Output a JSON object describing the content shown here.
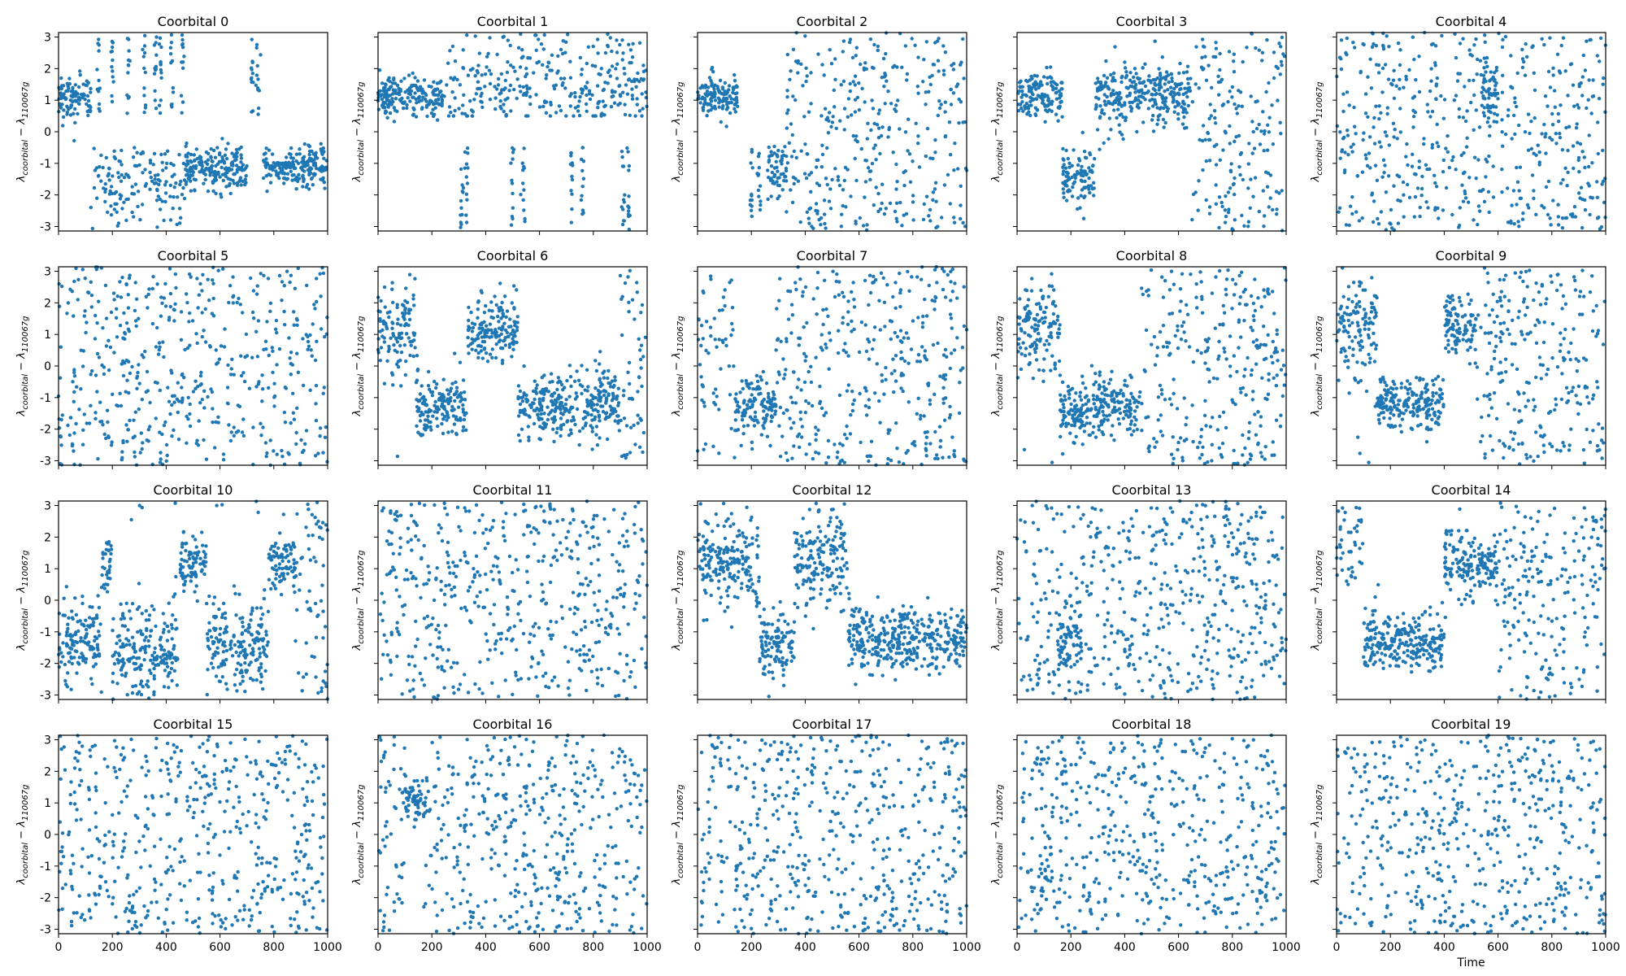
{
  "figure": {
    "color": "#1f77b4",
    "x_axis_label": "Time"
  },
  "chart_data": {
    "type": "scatter",
    "layout": {
      "rows": 4,
      "cols": 5,
      "sharex": true,
      "sharey": true
    },
    "xlim": [
      0,
      1000
    ],
    "ylim": [
      -3.1416,
      3.1416
    ],
    "xticks": [
      0,
      200,
      400,
      600,
      800,
      1000
    ],
    "yticks": [
      -3,
      -2,
      -1,
      0,
      1,
      2,
      3
    ],
    "xlabel_panel_index": 19,
    "ylabel_text": "λcoorbital − λ110067g",
    "ylabel_main": "λ",
    "ylabel_sub1": "coorbital",
    "ylabel_sub2": "110067g",
    "ylabel_minus": " − ",
    "points_per_series": 520,
    "series": [
      {
        "name": "Coorbital 0",
        "regimes": [
          {
            "t": [
              0,
              120
            ],
            "mode": "lib",
            "c": 1.1,
            "s": 0.35
          },
          {
            "t": [
              120,
              470
            ],
            "mode": "band",
            "lo": -3.14,
            "hi": -0.5,
            "cl": -1.5,
            "sl": 0.45
          },
          {
            "t": [
              120,
              470
            ],
            "mode": "stripe",
            "xs": [
              150,
              200,
              260,
              320,
              360,
              380,
              420,
              460
            ],
            "lo": 0.5,
            "hi": 3.1
          },
          {
            "t": [
              470,
              700
            ],
            "mode": "lib",
            "c": -1.2,
            "s": 0.35
          },
          {
            "t": [
              700,
              760
            ],
            "mode": "stripe",
            "xs": [
              720,
              740
            ],
            "lo": 0.5,
            "hi": 3.1
          },
          {
            "t": [
              760,
              1000
            ],
            "mode": "lib",
            "c": -1.1,
            "s": 0.3
          }
        ]
      },
      {
        "name": "Coorbital 1",
        "regimes": [
          {
            "t": [
              0,
              240
            ],
            "mode": "lib",
            "c": 1.1,
            "s": 0.3
          },
          {
            "t": [
              240,
              1000
            ],
            "mode": "band",
            "lo": 0.5,
            "hi": 3.1,
            "cl": 1.2,
            "sl": 0.5
          },
          {
            "t": [
              240,
              1000
            ],
            "mode": "stripe",
            "xs": [
              310,
              330,
              500,
              540,
              720,
              760,
              910,
              930
            ],
            "lo": -3.1,
            "hi": -0.5
          }
        ]
      },
      {
        "name": "Coorbital 2",
        "regimes": [
          {
            "t": [
              0,
              150
            ],
            "mode": "lib",
            "c": 1.1,
            "s": 0.3
          },
          {
            "t": [
              150,
              260
            ],
            "mode": "stripe",
            "xs": [
              200,
              230
            ],
            "lo": -3.14,
            "hi": -0.5
          },
          {
            "t": [
              260,
              330
            ],
            "mode": "lib",
            "c": -1.3,
            "s": 0.45
          },
          {
            "t": [
              330,
              1000
            ],
            "mode": "rand"
          }
        ]
      },
      {
        "name": "Coorbital 3",
        "regimes": [
          {
            "t": [
              0,
              170
            ],
            "mode": "lib",
            "c": 1.1,
            "s": 0.35
          },
          {
            "t": [
              170,
              290
            ],
            "mode": "lib",
            "c": -1.4,
            "s": 0.45
          },
          {
            "t": [
              290,
              640
            ],
            "mode": "lib",
            "c": 1.2,
            "s": 0.55
          },
          {
            "t": [
              640,
              1000
            ],
            "mode": "rand"
          }
        ]
      },
      {
        "name": "Coorbital 4",
        "regimes": [
          {
            "t": [
              0,
              1000
            ],
            "mode": "rand"
          },
          {
            "t": [
              540,
              600
            ],
            "mode": "lib",
            "c": 1.3,
            "s": 0.5
          }
        ]
      },
      {
        "name": "Coorbital 5",
        "regimes": [
          {
            "t": [
              0,
              1000
            ],
            "mode": "rand"
          }
        ]
      },
      {
        "name": "Coorbital 6",
        "regimes": [
          {
            "t": [
              0,
              140
            ],
            "mode": "lib",
            "c": 1.2,
            "s": 0.8
          },
          {
            "t": [
              140,
              330
            ],
            "mode": "lib",
            "c": -1.3,
            "s": 0.5
          },
          {
            "t": [
              330,
              520
            ],
            "mode": "lib",
            "c": 1.2,
            "s": 0.5
          },
          {
            "t": [
              520,
              900
            ],
            "mode": "lib",
            "c": -1.2,
            "s": 0.5
          },
          {
            "t": [
              900,
              1000
            ],
            "mode": "rand"
          }
        ]
      },
      {
        "name": "Coorbital 7",
        "regimes": [
          {
            "t": [
              0,
              140
            ],
            "mode": "band",
            "lo": -3.1,
            "hi": 3.1,
            "cl": 1.2,
            "sl": 0.9
          },
          {
            "t": [
              140,
              290
            ],
            "mode": "lib",
            "c": -1.3,
            "s": 0.5
          },
          {
            "t": [
              290,
              1000
            ],
            "mode": "rand"
          }
        ]
      },
      {
        "name": "Coorbital 8",
        "regimes": [
          {
            "t": [
              0,
              160
            ],
            "mode": "lib",
            "c": 1.2,
            "s": 0.8
          },
          {
            "t": [
              160,
              460
            ],
            "mode": "lib",
            "c": -1.3,
            "s": 0.5
          },
          {
            "t": [
              460,
              1000
            ],
            "mode": "rand"
          }
        ]
      },
      {
        "name": "Coorbital 9",
        "regimes": [
          {
            "t": [
              0,
              150
            ],
            "mode": "lib",
            "c": 1.2,
            "s": 0.8
          },
          {
            "t": [
              150,
              400
            ],
            "mode": "lib",
            "c": -1.2,
            "s": 0.4
          },
          {
            "t": [
              400,
              520
            ],
            "mode": "lib",
            "c": 1.3,
            "s": 0.5
          },
          {
            "t": [
              520,
              1000
            ],
            "mode": "rand"
          }
        ]
      },
      {
        "name": "Coorbital 10",
        "regimes": [
          {
            "t": [
              0,
              160
            ],
            "mode": "lib",
            "c": -1.2,
            "s": 0.7
          },
          {
            "t": [
              160,
              200
            ],
            "mode": "lib",
            "c": 1.2,
            "s": 0.5
          },
          {
            "t": [
              200,
              450
            ],
            "mode": "lib",
            "c": -1.6,
            "s": 0.8
          },
          {
            "t": [
              450,
              550
            ],
            "mode": "lib",
            "c": 1.1,
            "s": 0.45
          },
          {
            "t": [
              550,
              780
            ],
            "mode": "lib",
            "c": -1.5,
            "s": 0.8
          },
          {
            "t": [
              780,
              880
            ],
            "mode": "lib",
            "c": 1.2,
            "s": 0.5
          },
          {
            "t": [
              880,
              1000
            ],
            "mode": "rand"
          }
        ]
      },
      {
        "name": "Coorbital 11",
        "regimes": [
          {
            "t": [
              0,
              1000
            ],
            "mode": "rand"
          }
        ]
      },
      {
        "name": "Coorbital 12",
        "regimes": [
          {
            "t": [
              0,
              230
            ],
            "mode": "lib",
            "c": 1.2,
            "s": 0.7
          },
          {
            "t": [
              230,
              360
            ],
            "mode": "lib",
            "c": -1.4,
            "s": 0.6
          },
          {
            "t": [
              360,
              560
            ],
            "mode": "lib",
            "c": 1.4,
            "s": 0.7
          },
          {
            "t": [
              560,
              1000
            ],
            "mode": "lib",
            "c": -1.2,
            "s": 0.5
          }
        ]
      },
      {
        "name": "Coorbital 13",
        "regimes": [
          {
            "t": [
              0,
              1000
            ],
            "mode": "rand"
          },
          {
            "t": [
              150,
              240
            ],
            "mode": "lib",
            "c": -1.3,
            "s": 0.5
          }
        ]
      },
      {
        "name": "Coorbital 14",
        "regimes": [
          {
            "t": [
              0,
              100
            ],
            "mode": "band",
            "lo": 0.5,
            "hi": 3.1,
            "cl": 1.5,
            "sl": 0.7
          },
          {
            "t": [
              100,
              400
            ],
            "mode": "lib",
            "c": -1.3,
            "s": 0.45
          },
          {
            "t": [
              400,
              520
            ],
            "mode": "lib",
            "c": 1.2,
            "s": 0.6
          },
          {
            "t": [
              520,
              600
            ],
            "mode": "lib",
            "c": 1.1,
            "s": 0.35
          },
          {
            "t": [
              600,
              1000
            ],
            "mode": "rand"
          }
        ]
      },
      {
        "name": "Coorbital 15",
        "regimes": [
          {
            "t": [
              0,
              1000
            ],
            "mode": "rand"
          }
        ]
      },
      {
        "name": "Coorbital 16",
        "regimes": [
          {
            "t": [
              0,
              100
            ],
            "mode": "rand"
          },
          {
            "t": [
              100,
              170
            ],
            "mode": "lib",
            "c": 1.1,
            "s": 0.35
          },
          {
            "t": [
              170,
              1000
            ],
            "mode": "rand"
          }
        ]
      },
      {
        "name": "Coorbital 17",
        "regimes": [
          {
            "t": [
              0,
              1000
            ],
            "mode": "rand"
          }
        ]
      },
      {
        "name": "Coorbital 18",
        "regimes": [
          {
            "t": [
              0,
              1000
            ],
            "mode": "rand"
          }
        ]
      },
      {
        "name": "Coorbital 19",
        "regimes": [
          {
            "t": [
              0,
              1000
            ],
            "mode": "rand"
          }
        ]
      }
    ]
  }
}
